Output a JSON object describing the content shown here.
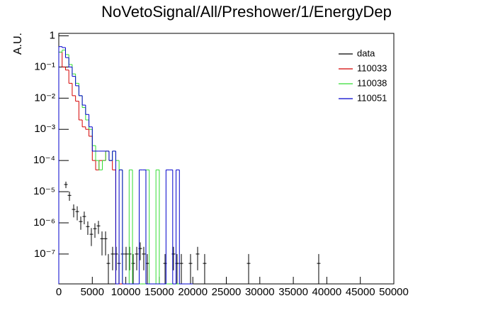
{
  "chart_data": {
    "type": "histogram",
    "title": "NoVetoSignal/All/Preshower/1/EnergyDep",
    "y_label": "A.U.",
    "log_y": true,
    "legend_position": "upper right",
    "xlim": [
      0,
      50000
    ],
    "ylim": [
      1.1e-08,
      1.2
    ],
    "xticks": [
      0,
      5000,
      10000,
      15000,
      20000,
      25000,
      30000,
      35000,
      40000,
      45000,
      50000
    ],
    "yticks": [
      {
        "value": 1e-07,
        "label": "10⁻⁷"
      },
      {
        "value": 1e-06,
        "label": "10⁻⁶"
      },
      {
        "value": 1e-05,
        "label": "10⁻⁵"
      },
      {
        "value": 0.0001,
        "label": "10⁻⁴"
      },
      {
        "value": 0.001,
        "label": "10⁻³"
      },
      {
        "value": 0.01,
        "label": "10⁻²"
      },
      {
        "value": 0.1,
        "label": "10⁻¹"
      },
      1
    ],
    "bins": [
      0,
      500,
      1000,
      1500,
      2000,
      2500,
      3000,
      3500,
      4000,
      4500,
      5000,
      5500,
      6000,
      6500,
      7000,
      7500,
      8000,
      8500,
      9000,
      9500,
      10000,
      10500,
      11000,
      11500,
      12000,
      12500,
      13000,
      13500,
      14000,
      14500,
      15000,
      15500,
      16000,
      16500,
      17000,
      17500,
      18000,
      18500,
      19000,
      19500,
      20000
    ],
    "series": [
      {
        "name": "data",
        "color": "#000000",
        "x": [
          1060,
          1590,
          2220,
          2750,
          3280,
          3800,
          4330,
          4860,
          5390,
          5920,
          6450,
          6980,
          7400,
          8030,
          8560,
          8980,
          9510,
          10040,
          10570,
          11100,
          11630,
          12160,
          12680,
          13210,
          15860,
          17120,
          17650,
          18290,
          19660,
          20720,
          21770,
          28330,
          38790
        ],
        "values": [
          1.7e-05,
          7.6e-06,
          2.7e-06,
          2.3e-06,
          1.1e-06,
          1.6e-06,
          7.6e-07,
          4.3e-07,
          6.5e-07,
          8e-07,
          3.1e-07,
          3.1e-07,
          5e-08,
          1e-07,
          1e-07,
          5e-08,
          1e-07,
          1e-07,
          1e-07,
          5e-08,
          1e-07,
          1.5e-07,
          1e-07,
          5e-08,
          5e-08,
          1e-07,
          5e-08,
          5e-08,
          5e-08,
          1e-07,
          5e-08,
          5e-08,
          5e-08
        ],
        "errors": [
          4e-06,
          2.5e-06,
          1.2e-06,
          1.1e-06,
          5e-07,
          7e-07,
          3.5e-07,
          2.5e-07,
          3.2e-07,
          3.6e-07,
          2.2e-07,
          2.2e-07,
          5e-08,
          7e-08,
          7e-08,
          5e-08,
          7e-08,
          7e-08,
          7e-08,
          5e-08,
          7e-08,
          8.7e-08,
          7e-08,
          5e-08,
          5e-08,
          7e-08,
          5e-08,
          5e-08,
          5e-08,
          7e-08,
          5e-08,
          5e-08,
          5e-08
        ]
      },
      {
        "name": "110033",
        "color": "#d40000",
        "values": [
          0.3,
          0.1,
          0.08,
          0.03,
          0.012,
          0.008,
          0.002,
          0.0012,
          0.001,
          0.0006,
          0.0001,
          5e-05,
          0.0001,
          0.0001,
          0.0002,
          0.0001,
          5e-05,
          0,
          0,
          0,
          0,
          0,
          0,
          0,
          0,
          0,
          0,
          0,
          0,
          0,
          0,
          0,
          0,
          0,
          0,
          0,
          0,
          0,
          0,
          0
        ]
      },
      {
        "name": "110038",
        "color": "#33dd33",
        "values": [
          0.3,
          0.35,
          0.25,
          0.12,
          0.06,
          0.03,
          0.012,
          0.005,
          0.002,
          0.001,
          0.0003,
          0.0001,
          5e-05,
          0.0001,
          0.0002,
          0.0001,
          0.0002,
          0.0001,
          5e-05,
          0,
          0,
          5e-05,
          0,
          0,
          0,
          0,
          5e-05,
          0,
          0,
          5e-05,
          0,
          0,
          0,
          0,
          0,
          0,
          0,
          0,
          0,
          0
        ]
      },
      {
        "name": "110051",
        "color": "#0000cc",
        "values": [
          0.45,
          0.42,
          0.2,
          0.1,
          0.05,
          0.025,
          0.012,
          0.006,
          0.003,
          0.0012,
          0.0002,
          0.0002,
          0.0002,
          0.0002,
          0.0002,
          0.0001,
          0.0002,
          0,
          5e-05,
          0,
          0,
          0,
          0,
          0,
          5e-05,
          5e-05,
          0,
          0,
          0,
          0,
          0,
          0,
          5e-05,
          5e-05,
          0,
          5e-05,
          0,
          0,
          0,
          0
        ]
      }
    ]
  }
}
